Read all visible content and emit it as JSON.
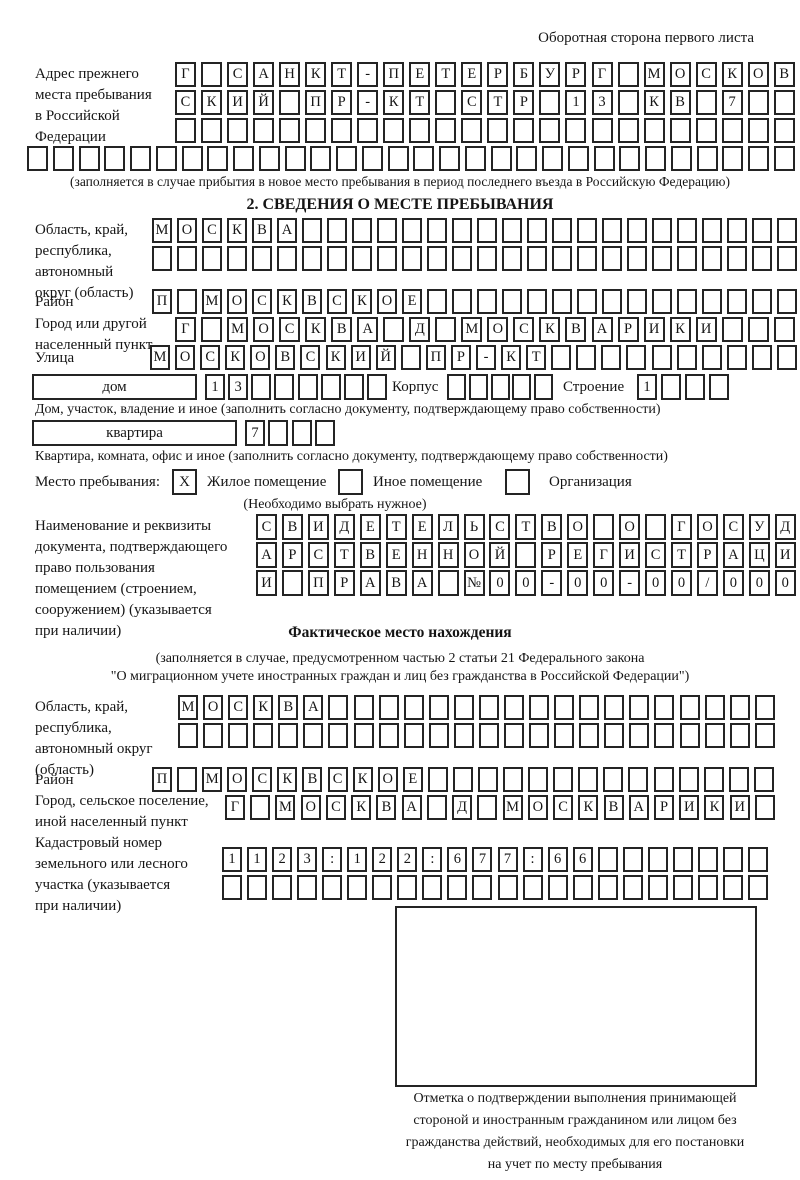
{
  "page": {
    "header_note": "Оборотная сторона первого листа"
  },
  "prev_address": {
    "label_lines": [
      "Адрес прежнего",
      "места пребывания",
      "в Российской",
      "Федерации"
    ],
    "row1": [
      "Г",
      "",
      "С",
      "А",
      "Н",
      "К",
      "Т",
      "-",
      "П",
      "Е",
      "Т",
      "Е",
      "Р",
      "Б",
      "У",
      "Р",
      "Г",
      "",
      "М",
      "О",
      "С",
      "К",
      "О",
      "В"
    ],
    "row2": [
      "С",
      "К",
      "И",
      "Й",
      "",
      "П",
      "Р",
      "-",
      "К",
      "Т",
      "",
      "С",
      "Т",
      "Р",
      "",
      "1",
      "3",
      "",
      "К",
      "В",
      "",
      "7",
      "",
      ""
    ],
    "row3": [
      "",
      "",
      "",
      "",
      "",
      "",
      "",
      "",
      "",
      "",
      "",
      "",
      "",
      "",
      "",
      "",
      "",
      "",
      "",
      "",
      "",
      "",
      "",
      ""
    ],
    "row4": [
      "",
      "",
      "",
      "",
      "",
      "",
      "",
      "",
      "",
      "",
      "",
      "",
      "",
      "",
      "",
      "",
      "",
      "",
      "",
      "",
      "",
      "",
      "",
      "",
      "",
      "",
      "",
      "",
      "",
      ""
    ],
    "note": "(заполняется в случае прибытия в новое место пребывания в период последнего въезда в Российскую Федерацию)"
  },
  "section2": {
    "title": "2. СВЕДЕНИЯ О МЕСТЕ ПРЕБЫВАНИЯ",
    "region": {
      "label_lines": [
        "Область, край,",
        "республика,",
        "автономный",
        "округ (область)"
      ],
      "row1": [
        "М",
        "О",
        "С",
        "К",
        "В",
        "А",
        "",
        "",
        "",
        "",
        "",
        "",
        "",
        "",
        "",
        "",
        "",
        "",
        "",
        "",
        "",
        "",
        "",
        "",
        "",
        ""
      ],
      "row2": [
        "",
        "",
        "",
        "",
        "",
        "",
        "",
        "",
        "",
        "",
        "",
        "",
        "",
        "",
        "",
        "",
        "",
        "",
        "",
        "",
        "",
        "",
        "",
        "",
        "",
        ""
      ]
    },
    "district": {
      "label": "Район",
      "row": [
        "П",
        "",
        "М",
        "О",
        "С",
        "К",
        "В",
        "С",
        "К",
        "О",
        "Е",
        "",
        "",
        "",
        "",
        "",
        "",
        "",
        "",
        "",
        "",
        "",
        "",
        "",
        "",
        ""
      ]
    },
    "city": {
      "label_lines": [
        "Город или другой",
        "населенный пункт"
      ],
      "row": [
        "Г",
        "",
        "М",
        "О",
        "С",
        "К",
        "В",
        "А",
        "",
        "Д",
        "",
        "М",
        "О",
        "С",
        "К",
        "В",
        "А",
        "Р",
        "И",
        "К",
        "И",
        "",
        "",
        ""
      ]
    },
    "street": {
      "label": "Улица",
      "row": [
        "М",
        "О",
        "С",
        "К",
        "О",
        "В",
        "С",
        "К",
        "И",
        "Й",
        "",
        "П",
        "Р",
        "-",
        "К",
        "Т",
        "",
        "",
        "",
        "",
        "",
        "",
        "",
        "",
        "",
        ""
      ]
    },
    "house": {
      "box_label": "дом",
      "cells": [
        "1",
        "3",
        "",
        "",
        "",
        "",
        "",
        ""
      ],
      "korpus_label": "Корпус",
      "korpus_cells": [
        "",
        "",
        "",
        "",
        ""
      ],
      "stroenie_label": "Строение",
      "stroenie_cells": [
        "1",
        "",
        "",
        ""
      ],
      "note": "Дом, участок, владение и иное (заполнить согласно документу, подтверждающему право собственности)"
    },
    "apartment": {
      "box_label": "квартира",
      "cells": [
        "7",
        "",
        "",
        ""
      ],
      "note": "Квартира, комната, офис и иное (заполнить согласно документу, подтверждающему право собственности)"
    },
    "stay": {
      "label": "Место пребывания:",
      "options": [
        {
          "label": "Жилое помещение",
          "mark": "X"
        },
        {
          "label": "Иное помещение",
          "mark": ""
        },
        {
          "label": "Организация",
          "mark": ""
        }
      ],
      "note": "(Необходимо выбрать нужное)"
    }
  },
  "document": {
    "label_lines": [
      "Наименование и реквизиты",
      "документа, подтверждающего",
      "право пользования",
      "помещением (строением,",
      "сооружением) (указывается",
      "при наличии)"
    ],
    "row1": [
      "С",
      "В",
      "И",
      "Д",
      "Е",
      "Т",
      "Е",
      "Л",
      "Ь",
      "С",
      "Т",
      "В",
      "О",
      "",
      "О",
      "",
      "Г",
      "О",
      "С",
      "У",
      "Д"
    ],
    "row2": [
      "А",
      "Р",
      "С",
      "Т",
      "В",
      "Е",
      "Н",
      "Н",
      "О",
      "Й",
      "",
      "Р",
      "Е",
      "Г",
      "И",
      "С",
      "Т",
      "Р",
      "А",
      "Ц",
      "И"
    ],
    "row3": [
      "И",
      "",
      "П",
      "Р",
      "А",
      "В",
      "А",
      "",
      "№",
      "0",
      "0",
      "-",
      "0",
      "0",
      "-",
      "0",
      "0",
      "/",
      "0",
      "0",
      "0"
    ]
  },
  "actual": {
    "title": "Фактическое место нахождения",
    "subtitle_lines": [
      "(заполняется в случае, предусмотренном частью 2 статьи 21 Федерального закона",
      "\"О миграционном учете иностранных граждан и лиц без гражданства в Российской Федерации\")"
    ],
    "region": {
      "label_lines": [
        "Область, край,",
        "республика,",
        "автономный округ",
        "(область)"
      ],
      "row1": [
        "М",
        "О",
        "С",
        "К",
        "В",
        "А",
        "",
        "",
        "",
        "",
        "",
        "",
        "",
        "",
        "",
        "",
        "",
        "",
        "",
        "",
        "",
        "",
        "",
        ""
      ],
      "row2": [
        "",
        "",
        "",
        "",
        "",
        "",
        "",
        "",
        "",
        "",
        "",
        "",
        "",
        "",
        "",
        "",
        "",
        "",
        "",
        "",
        "",
        "",
        "",
        ""
      ]
    },
    "district": {
      "label": "Район",
      "row": [
        "П",
        "",
        "М",
        "О",
        "С",
        "К",
        "В",
        "С",
        "К",
        "О",
        "Е",
        "",
        "",
        "",
        "",
        "",
        "",
        "",
        "",
        "",
        "",
        "",
        "",
        "",
        ""
      ]
    },
    "city": {
      "label_lines": [
        "Город, сельское поселение,",
        "иной населенный пункт"
      ],
      "row": [
        "Г",
        "",
        "М",
        "О",
        "С",
        "К",
        "В",
        "А",
        "",
        "Д",
        "",
        "М",
        "О",
        "С",
        "К",
        "В",
        "А",
        "Р",
        "И",
        "К",
        "И",
        ""
      ]
    },
    "cadastral": {
      "label_lines": [
        "Кадастровый номер",
        "земельного или лесного",
        "участка (указывается",
        "при наличии)"
      ],
      "row1": [
        "1",
        "1",
        "2",
        "3",
        ":",
        "1",
        "2",
        "2",
        ":",
        "6",
        "7",
        "7",
        ":",
        "6",
        "6",
        "",
        "",
        "",
        "",
        "",
        "",
        ""
      ],
      "row2": [
        "",
        "",
        "",
        "",
        "",
        "",
        "",
        "",
        "",
        "",
        "",
        "",
        "",
        "",
        "",
        "",
        "",
        "",
        "",
        "",
        "",
        ""
      ]
    }
  },
  "stamp": {
    "caption_lines": [
      "Отметка о подтверждении выполнения принимающей",
      "стороной и иностранным гражданином или лицом без",
      "гражданства действий, необходимых для его постановки",
      "на учет по месту пребывания"
    ]
  }
}
